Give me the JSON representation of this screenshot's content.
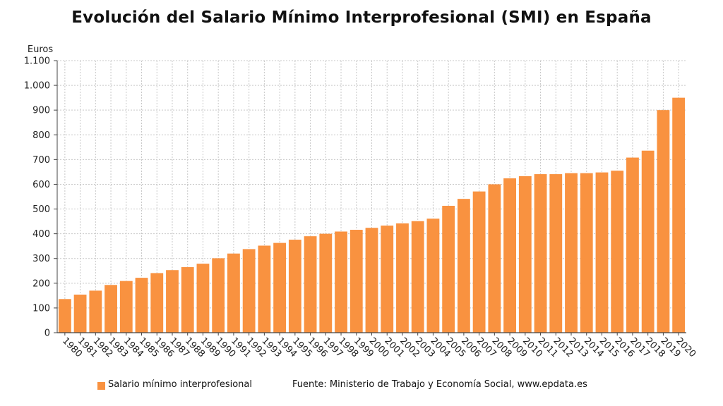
{
  "colors": {
    "bar": "#F99240",
    "grid": "#c8c8c8",
    "axis": "#444444"
  },
  "footer": {
    "legend_label": "Salario mínimo interprofesional",
    "source": "Fuente: Ministerio de Trabajo y Economía Social, www.epdata.es"
  },
  "chart_data": {
    "type": "bar",
    "title": "Evolución del Salario Mínimo Interprofesional (SMI) en España",
    "ylabel": "Euros",
    "xlabel": "",
    "ylim": [
      0,
      1100
    ],
    "yticks": [
      0,
      100,
      200,
      300,
      400,
      500,
      600,
      700,
      800,
      900,
      1000,
      1100
    ],
    "ytick_labels": [
      "0",
      "100",
      "200",
      "300",
      "400",
      "500",
      "600",
      "700",
      "800",
      "900",
      "1.000",
      "1.100"
    ],
    "grid": true,
    "legend_position": "bottom",
    "categories": [
      "1980",
      "1981",
      "1982",
      "1983",
      "1984",
      "1985",
      "1986",
      "1987",
      "1988",
      "1989",
      "1990",
      "1991",
      "1992",
      "1993",
      "1994",
      "1995",
      "1996",
      "1997",
      "1998",
      "1999",
      "2000",
      "2001",
      "2002",
      "2003",
      "2004",
      "2005",
      "2006",
      "2007",
      "2008",
      "2009",
      "2010",
      "2011",
      "2012",
      "2013",
      "2014",
      "2015",
      "2016",
      "2017",
      "2018",
      "2019",
      "2020"
    ],
    "series": [
      {
        "name": "Salario mínimo interprofesional",
        "values": [
          136,
          154,
          170,
          193,
          209,
          222,
          241,
          253,
          265,
          279,
          301,
          320,
          338,
          352,
          363,
          376,
          390,
          400,
          409,
          416,
          424,
          433,
          442,
          451,
          461,
          513,
          541,
          571,
          600,
          624,
          633,
          641,
          641,
          645,
          645,
          648,
          655,
          708,
          736,
          900,
          950
        ]
      }
    ]
  }
}
